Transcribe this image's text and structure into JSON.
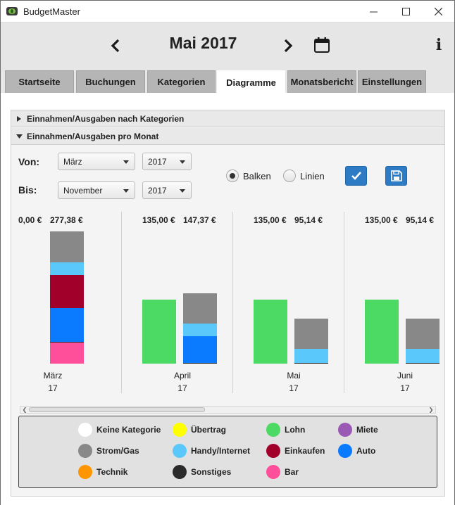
{
  "window": {
    "title": "BudgetMaster"
  },
  "header": {
    "month_title": "Mai 2017"
  },
  "tabs": [
    {
      "label": "Startseite"
    },
    {
      "label": "Buchungen"
    },
    {
      "label": "Kategorien"
    },
    {
      "label": "Diagramme",
      "active": true
    },
    {
      "label": "Monatsbericht"
    },
    {
      "label": "Einstellungen"
    }
  ],
  "accordion": {
    "section1": "Einnahmen/Ausgaben nach Kategorien",
    "section2": "Einnahmen/Ausgaben pro Monat"
  },
  "filters": {
    "from_label": "Von:",
    "to_label": "Bis:",
    "from_month": "März",
    "from_year": "2017",
    "to_month": "November",
    "to_year": "2017",
    "radio_bars": "Balken",
    "radio_lines": "Linien",
    "selected_mode": "Balken"
  },
  "colors": {
    "Keine Kategorie": "#ffffff",
    "Übertrag": "#ffff00",
    "Lohn": "#4cd964",
    "Miete": "#9b59b6",
    "Strom/Gas": "#888888",
    "Handy/Internet": "#5ac8fa",
    "Einkaufen": "#a0002a",
    "Auto": "#0a7aff",
    "Technik": "#ff9500",
    "Sonstiges": "#2b2b2b",
    "Bar": "#ff4f9a",
    "accent": "#2c7bc4"
  },
  "legend": [
    {
      "name": "Keine Kategorie",
      "color": "#ffffff"
    },
    {
      "name": "Übertrag",
      "color": "#ffff00"
    },
    {
      "name": "Lohn",
      "color": "#4cd964"
    },
    {
      "name": "Miete",
      "color": "#9b59b6"
    },
    {
      "name": "Strom/Gas",
      "color": "#888888"
    },
    {
      "name": "Handy/Internet",
      "color": "#5ac8fa"
    },
    {
      "name": "Einkaufen",
      "color": "#a0002a"
    },
    {
      "name": "Auto",
      "color": "#0a7aff"
    },
    {
      "name": "Technik",
      "color": "#ff9500"
    },
    {
      "name": "Sonstiges",
      "color": "#2b2b2b"
    },
    {
      "name": "Bar",
      "color": "#ff4f9a"
    }
  ],
  "chart_data": {
    "type": "bar",
    "title": "Einnahmen/Ausgaben pro Monat",
    "xlabel": "",
    "ylabel": "",
    "unit": "€",
    "months": [
      {
        "label": "März",
        "year": "17",
        "income_label": "0,00 €",
        "expense_label": "277,38 €",
        "income": 0.0,
        "expense": 277.38,
        "expense_segments": [
          {
            "category": "Bar",
            "value": 45.0
          },
          {
            "category": "Sonstiges",
            "value": 1.0
          },
          {
            "category": "Auto",
            "value": 70.0
          },
          {
            "category": "Einkaufen",
            "value": 69.38
          },
          {
            "category": "Handy/Internet",
            "value": 27.0
          },
          {
            "category": "Strom/Gas",
            "value": 65.0
          }
        ]
      },
      {
        "label": "April",
        "year": "17",
        "income_label": "135,00 €",
        "expense_label": "147,37 €",
        "income": 135.0,
        "expense": 147.37,
        "expense_segments": [
          {
            "category": "Sonstiges",
            "value": 2.0
          },
          {
            "category": "Auto",
            "value": 55.0
          },
          {
            "category": "Handy/Internet",
            "value": 27.0
          },
          {
            "category": "Strom/Gas",
            "value": 63.37
          }
        ]
      },
      {
        "label": "Mai",
        "year": "17",
        "income_label": "135,00 €",
        "expense_label": "95,14 €",
        "income": 135.0,
        "expense": 95.14,
        "expense_segments": [
          {
            "category": "Sonstiges",
            "value": 2.0
          },
          {
            "category": "Handy/Internet",
            "value": 29.0
          },
          {
            "category": "Strom/Gas",
            "value": 64.14
          }
        ]
      },
      {
        "label": "Juni",
        "year": "17",
        "income_label": "135,00 €",
        "expense_label": "95,14 €",
        "income": 135.0,
        "expense": 95.14,
        "expense_segments": [
          {
            "category": "Sonstiges",
            "value": 2.0
          },
          {
            "category": "Handy/Internet",
            "value": 29.0
          },
          {
            "category": "Strom/Gas",
            "value": 64.14
          }
        ]
      }
    ],
    "ylim": [
      0,
      277.38
    ]
  }
}
